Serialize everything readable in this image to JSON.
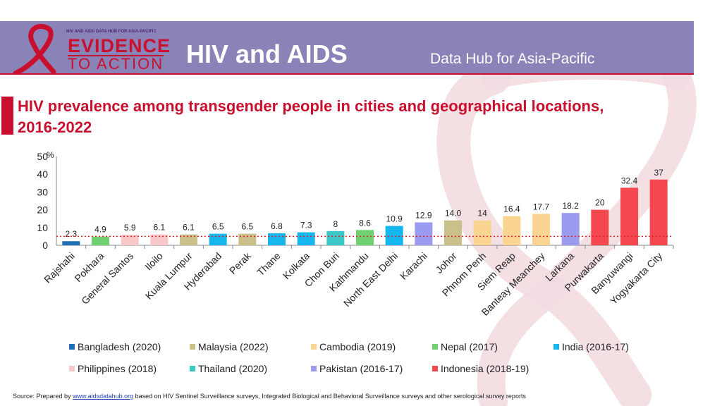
{
  "header": {
    "logo_small": "HIV AND AIDS DATA HUB FOR ASIA-PACIFIC",
    "logo_line1": "EVIDENCE",
    "logo_line2": "TO ACTION",
    "title": "HIV and AIDS",
    "subtitle": "Data Hub for Asia-Pacific"
  },
  "colors": {
    "header_bg": "#8a83b8",
    "accent": "#c8102e",
    "ribbon": "#f3dbe0"
  },
  "chart_data": {
    "type": "bar",
    "title": "HIV prevalence among transgender people in cities and geographical locations, 2016-2022",
    "ylabel": "%",
    "xlabel": "",
    "ylim": [
      0,
      50
    ],
    "yticks": [
      0,
      10,
      20,
      30,
      40,
      50
    ],
    "reference_line": 5,
    "bars": [
      {
        "city": "Rajshahi",
        "value": 2.3,
        "label": "2.3",
        "group": "Bangladesh (2020)"
      },
      {
        "city": "Pokhara",
        "value": 4.9,
        "label": "4.9",
        "group": "Nepal (2017)"
      },
      {
        "city": "General Santos",
        "value": 5.9,
        "label": "5.9",
        "group": "Philippines (2018)"
      },
      {
        "city": "Iloilo",
        "value": 6.1,
        "label": "6.1",
        "group": "Philippines (2018)"
      },
      {
        "city": "Kuala Lumpur",
        "value": 6.1,
        "label": "6.1",
        "group": "Malaysia (2022)"
      },
      {
        "city": "Hyderabad",
        "value": 6.5,
        "label": "6.5",
        "group": "India (2016-17)"
      },
      {
        "city": "Perak",
        "value": 6.5,
        "label": "6.5",
        "group": "Malaysia (2022)"
      },
      {
        "city": "Thane",
        "value": 6.8,
        "label": "6.8",
        "group": "India (2016-17)"
      },
      {
        "city": "Kolkata",
        "value": 7.3,
        "label": "7.3",
        "group": "India (2016-17)"
      },
      {
        "city": "Chon Buri",
        "value": 8,
        "label": "8",
        "group": "Thailand (2020)"
      },
      {
        "city": "Kathmandu",
        "value": 8.6,
        "label": "8.6",
        "group": "Nepal (2017)"
      },
      {
        "city": "North East Delhi",
        "value": 10.9,
        "label": "10.9",
        "group": "India (2016-17)"
      },
      {
        "city": "Karachi",
        "value": 12.9,
        "label": "12.9",
        "group": "Pakistan (2016-17)"
      },
      {
        "city": "Johor",
        "value": 14.0,
        "label": "14.0",
        "group": "Malaysia (2022)"
      },
      {
        "city": "Phnom Penh",
        "value": 14,
        "label": "14",
        "group": "Cambodia (2019)"
      },
      {
        "city": "Siem Reap",
        "value": 16.4,
        "label": "16.4",
        "group": "Cambodia (2019)"
      },
      {
        "city": "Banteay Meanchey",
        "value": 17.7,
        "label": "17.7",
        "group": "Cambodia (2019)"
      },
      {
        "city": "Larkana",
        "value": 18.2,
        "label": "18.2",
        "group": "Pakistan (2016-17)"
      },
      {
        "city": "Purwakarta",
        "value": 20,
        "label": "20",
        "group": "Indonesia (2018-19)"
      },
      {
        "city": "Banyuwangi",
        "value": 32.4,
        "label": "32.4",
        "group": "Indonesia (2018-19)"
      },
      {
        "city": "Yogyakarta City",
        "value": 37,
        "label": "37",
        "group": "Indonesia (2018-19)"
      }
    ],
    "legend": [
      {
        "label": "Bangladesh (2020)",
        "color": "#1f6fb5"
      },
      {
        "label": "Malaysia (2022)",
        "color": "#c9c08a"
      },
      {
        "label": "Cambodia (2019)",
        "color": "#f9d591"
      },
      {
        "label": "Nepal (2017)",
        "color": "#6fd16f"
      },
      {
        "label": "India (2016-17)",
        "color": "#16b6ee"
      },
      {
        "label": "Philippines (2018)",
        "color": "#f8c8c8"
      },
      {
        "label": "Thailand (2020)",
        "color": "#3cc8c8"
      },
      {
        "label": "Pakistan (2016-17)",
        "color": "#9b9bef"
      },
      {
        "label": "Indonesia (2018-19)",
        "color": "#f4474f"
      }
    ]
  },
  "source": {
    "prefix": "Source: Prepared by",
    "link": "www.aidsdatahub.org",
    "suffix": "based on HIV Sentinel Surveillance surveys, Integrated Biological and Behavioral Surveillance surveys and other serological survey reports"
  }
}
